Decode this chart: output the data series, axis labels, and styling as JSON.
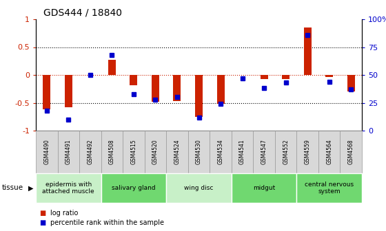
{
  "title": "GDS444 / 18840",
  "samples": [
    "GSM4490",
    "GSM4491",
    "GSM4492",
    "GSM4508",
    "GSM4515",
    "GSM4520",
    "GSM4524",
    "GSM4530",
    "GSM4534",
    "GSM4541",
    "GSM4547",
    "GSM4552",
    "GSM4559",
    "GSM4564",
    "GSM4568"
  ],
  "log_ratio": [
    -0.62,
    -0.58,
    0.0,
    0.27,
    -0.19,
    -0.48,
    -0.47,
    -0.75,
    -0.52,
    0.0,
    -0.08,
    -0.08,
    0.85,
    -0.04,
    -0.3
  ],
  "percentile": [
    18,
    10,
    50,
    68,
    33,
    28,
    30,
    12,
    24,
    47,
    38,
    43,
    86,
    44,
    37
  ],
  "tissue_groups": [
    {
      "label": "epidermis with\nattached muscle",
      "start": 0,
      "end": 3,
      "color": "#c8f0c8"
    },
    {
      "label": "salivary gland",
      "start": 3,
      "end": 6,
      "color": "#70d870"
    },
    {
      "label": "wing disc",
      "start": 6,
      "end": 9,
      "color": "#c8f0c8"
    },
    {
      "label": "midgut",
      "start": 9,
      "end": 12,
      "color": "#70d870"
    },
    {
      "label": "central nervous\nsystem",
      "start": 12,
      "end": 15,
      "color": "#70d870"
    }
  ],
  "bar_color_red": "#cc2200",
  "bar_color_blue": "#0000cc",
  "ylim_left": [
    -1,
    1
  ],
  "ylim_right": [
    0,
    100
  ],
  "yticks_left": [
    -1,
    -0.5,
    0,
    0.5,
    1
  ],
  "yticks_right": [
    0,
    25,
    50,
    75,
    100
  ],
  "ytick_labels_right": [
    "0",
    "25",
    "50",
    "75",
    "100%"
  ],
  "hline_dotted_black": [
    -0.5,
    0.5
  ],
  "hline_dotted_red": 0.0,
  "tissue_label": "tissue",
  "legend_items": [
    {
      "label": "log ratio",
      "color": "#cc2200"
    },
    {
      "label": "percentile rank within the sample",
      "color": "#0000cc"
    }
  ],
  "bar_width": 0.35,
  "percentile_marker_size": 5,
  "sample_box_color": "#d8d8d8",
  "sample_box_edge": "#999999"
}
